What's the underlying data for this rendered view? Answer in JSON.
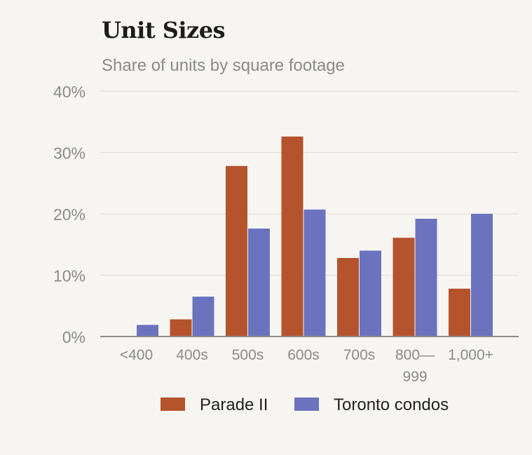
{
  "chart_data": {
    "type": "bar",
    "title": "Unit Sizes",
    "subtitle": "Share of units by square footage",
    "xlabel": "",
    "ylabel": "",
    "categories": [
      "<400",
      "400s",
      "500s",
      "600s",
      "700s",
      "800—\n999",
      "1,000+"
    ],
    "series": [
      {
        "name": "Parade II",
        "color": "#b5532d",
        "values": [
          0,
          2.8,
          27.8,
          32.6,
          12.8,
          16.1,
          7.8
        ]
      },
      {
        "name": "Toronto condos",
        "color": "#6b73bf",
        "values": [
          1.9,
          6.5,
          17.6,
          20.7,
          14.0,
          19.2,
          20.0
        ]
      }
    ],
    "ylim": [
      0,
      40
    ],
    "yticks": [
      0,
      10,
      20,
      30,
      40
    ],
    "ytick_labels": [
      "0%",
      "10%",
      "20%",
      "30%",
      "40%"
    ],
    "grid": true,
    "legend_position": "bottom"
  }
}
